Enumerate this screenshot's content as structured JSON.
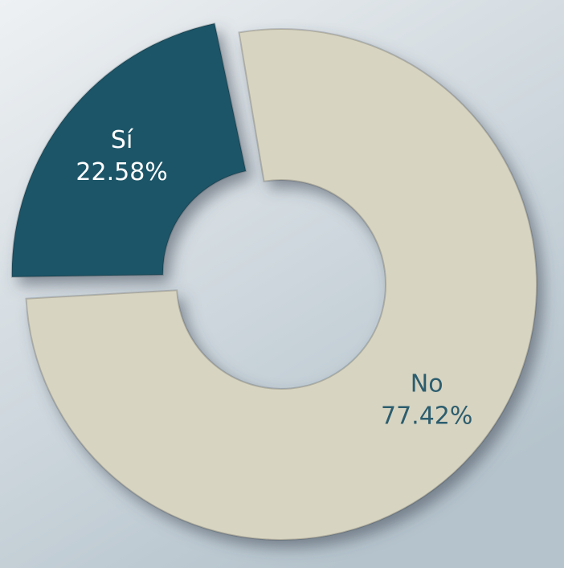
{
  "chart_data": {
    "type": "pie",
    "donut": true,
    "categories": [
      "Sí",
      "No"
    ],
    "values": [
      22.58,
      77.42
    ],
    "value_labels": [
      "22.58%",
      "77.42%"
    ],
    "colors": [
      "#1f5568",
      "#d7d4c1"
    ],
    "label_colors": [
      "#ffffff",
      "#2c5d6e"
    ]
  }
}
